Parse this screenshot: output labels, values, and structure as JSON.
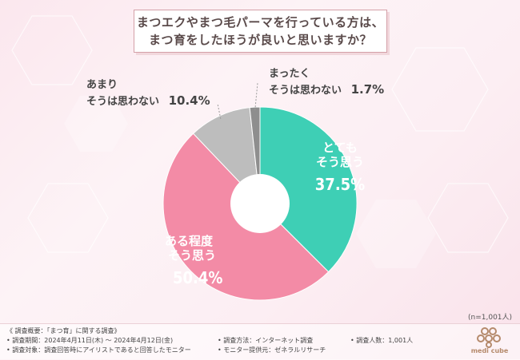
{
  "title": {
    "line1": "まつエクやまつ毛パーマを行っている方は、",
    "line2": "まつ育をしたほうが良いと思いますか？"
  },
  "chart_data": {
    "type": "pie",
    "donut": true,
    "slices": [
      {
        "label_lines": [
          "とても",
          "そう思う"
        ],
        "value": 37.5,
        "pct_text": "37.5%",
        "color": "#3ecfb5"
      },
      {
        "label_lines": [
          "ある程度",
          "そう思う"
        ],
        "value": 50.4,
        "pct_text": "50.4%",
        "color": "#f38ba6"
      },
      {
        "label_lines": [
          "あまり",
          "そうは思わない"
        ],
        "value": 10.4,
        "pct_text": "10.4%",
        "color": "#bdbdbd"
      },
      {
        "label_lines": [
          "まったく",
          "そうは思わない"
        ],
        "value": 1.7,
        "pct_text": "1.7%",
        "color": "#8e8e8e"
      }
    ]
  },
  "sample_size": "(n=1,001人)",
  "footer": {
    "overview": "《 調査概要：「まつ育」に関する調査》",
    "period": "• 調査期間：2024年4月11日(木) 〜 2024年4月12日(金)",
    "target": "• 調査対象：調査回答時にアイリストであると回答したモニター",
    "method": "• 調査方法：インターネット調査",
    "provider": "• モニター提供元：ゼネラルリサーチ",
    "count": "• 調査人数：1,001人"
  },
  "logo_text": "medi cube"
}
